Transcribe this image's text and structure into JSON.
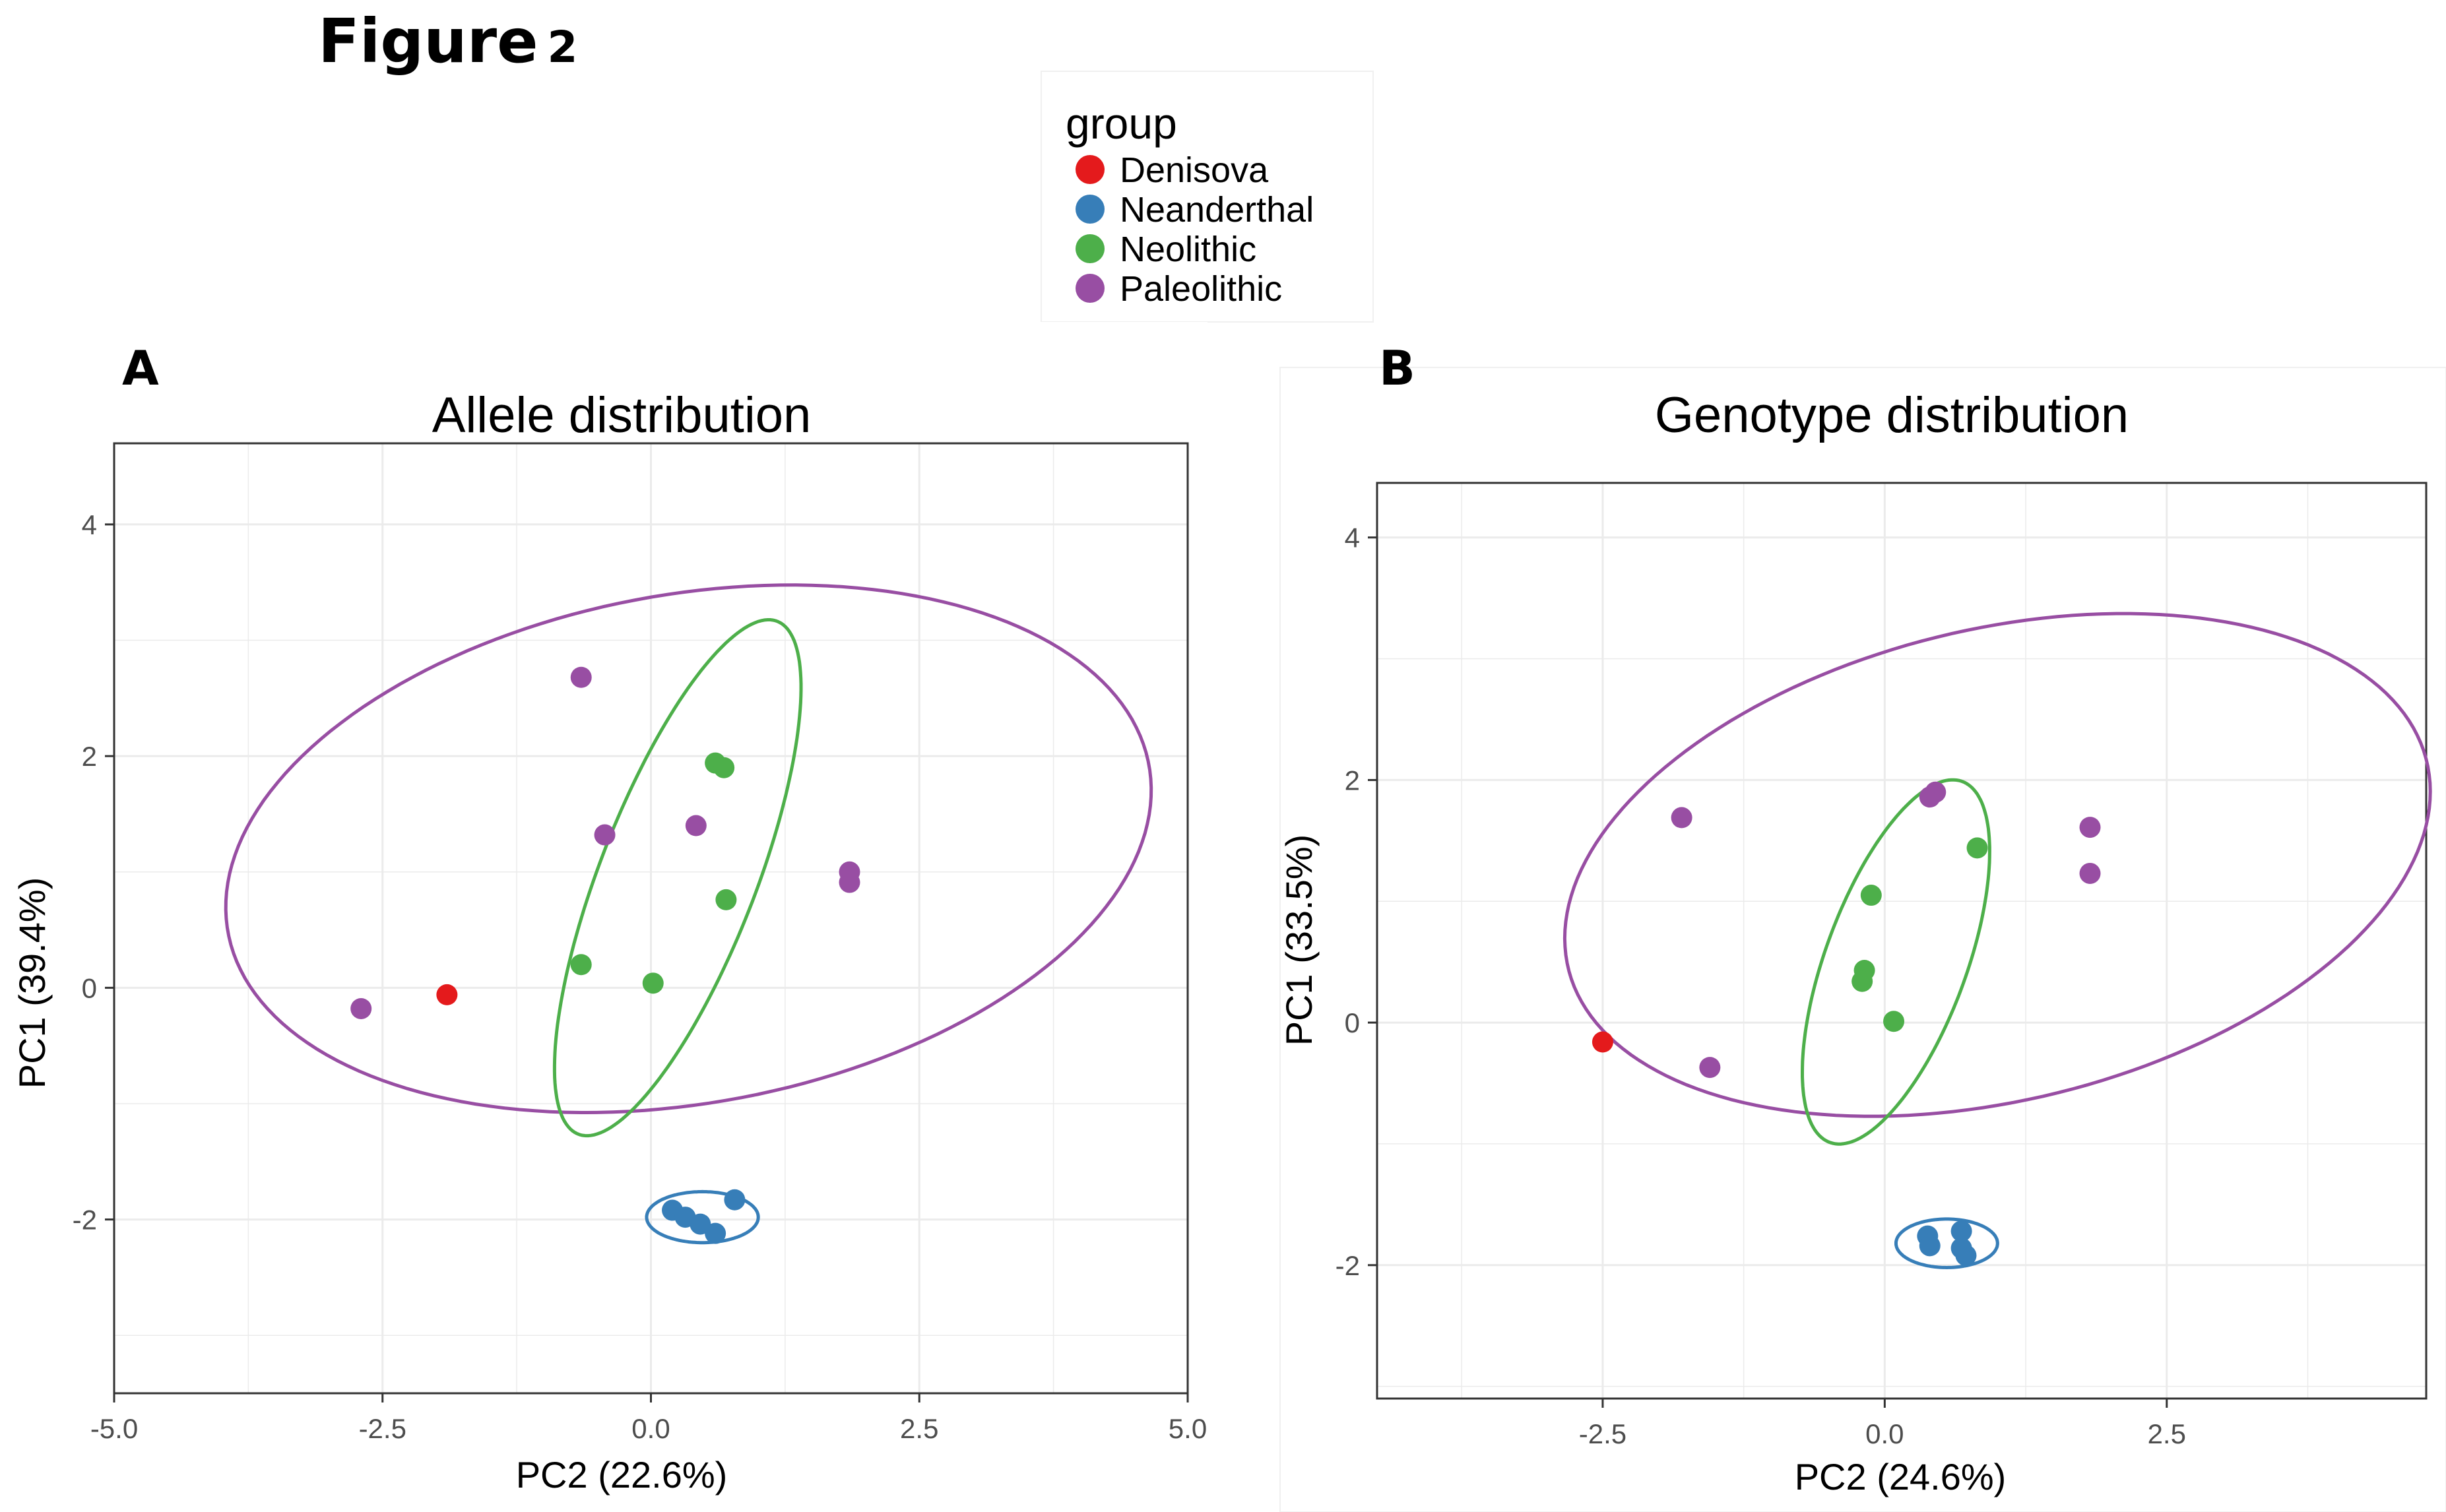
{
  "figure": {
    "title_word": "Figure",
    "title_number": "2"
  },
  "legend": {
    "title": "group",
    "entries": [
      {
        "label": "Denisova",
        "color": "#e41a1c"
      },
      {
        "label": "Neanderthal",
        "color": "#377eb8"
      },
      {
        "label": "Neolithic",
        "color": "#4daf4a"
      },
      {
        "label": "Paleolithic",
        "color": "#984ea3"
      }
    ]
  },
  "chart_data": [
    {
      "type": "scatter",
      "panel_label": "A",
      "title": "Allele distribution",
      "xlabel": "PC2 (22.6%)",
      "ylabel": "PC1 (39.4%)",
      "xlim": [
        -5.0,
        5.0
      ],
      "ylim": [
        -3.5,
        4.7
      ],
      "xticks": [
        -5.0,
        -2.5,
        0.0,
        2.5,
        5.0
      ],
      "xtick_labels": [
        "-5.0",
        "-2.5",
        "0.0",
        "2.5",
        "5.0"
      ],
      "yticks": [
        -2,
        0,
        2,
        4
      ],
      "ytick_labels": [
        "-2",
        "0",
        "2",
        "4"
      ],
      "grid": true,
      "series": [
        {
          "name": "Denisova",
          "color": "#e41a1c",
          "points": [
            [
              -1.9,
              -0.06
            ]
          ]
        },
        {
          "name": "Neanderthal",
          "color": "#377eb8",
          "points": [
            [
              0.2,
              -1.92
            ],
            [
              0.32,
              -1.98
            ],
            [
              0.46,
              -2.04
            ],
            [
              0.6,
              -2.12
            ],
            [
              0.78,
              -1.83
            ]
          ]
        },
        {
          "name": "Neolithic",
          "color": "#4daf4a",
          "points": [
            [
              0.6,
              1.94
            ],
            [
              0.68,
              1.9
            ],
            [
              0.7,
              0.76
            ],
            [
              -0.65,
              0.2
            ],
            [
              0.02,
              0.04
            ]
          ]
        },
        {
          "name": "Paleolithic",
          "color": "#984ea3",
          "points": [
            [
              -0.65,
              2.68
            ],
            [
              -0.43,
              1.32
            ],
            [
              0.42,
              1.4
            ],
            [
              1.85,
              1.0
            ],
            [
              1.85,
              0.91
            ],
            [
              -2.7,
              -0.18
            ]
          ]
        }
      ],
      "ellipses": [
        {
          "group": "Paleolithic",
          "color": "#984ea3",
          "center": [
            0.35,
            1.2
          ],
          "semi_axes": [
            4.35,
            2.2
          ],
          "rotation_deg": 9
        },
        {
          "group": "Neolithic",
          "color": "#4daf4a",
          "center": [
            0.25,
            0.95
          ],
          "semi_axes": [
            2.4,
            0.72
          ],
          "rotation_deg": 67
        },
        {
          "group": "Neanderthal",
          "color": "#377eb8",
          "center": [
            0.48,
            -1.98
          ],
          "semi_axes": [
            0.52,
            0.22
          ],
          "rotation_deg": 0
        }
      ]
    },
    {
      "type": "scatter",
      "panel_label": "B",
      "title": "Genotype distribution",
      "xlabel": "PC2 (24.6%)",
      "ylabel": "PC1 (33.5%)",
      "xlim": [
        -4.5,
        4.8
      ],
      "ylim": [
        -3.1,
        4.45
      ],
      "xticks": [
        -2.5,
        0.0,
        2.5
      ],
      "xtick_labels": [
        "-2.5",
        "0.0",
        "2.5"
      ],
      "yticks": [
        -2,
        0,
        2,
        4
      ],
      "ytick_labels": [
        "-2",
        "0",
        "2",
        "4"
      ],
      "grid": true,
      "series": [
        {
          "name": "Denisova",
          "color": "#e41a1c",
          "points": [
            [
              -2.5,
              -0.16
            ]
          ]
        },
        {
          "name": "Neanderthal",
          "color": "#377eb8",
          "points": [
            [
              0.38,
              -1.76
            ],
            [
              0.4,
              -1.84
            ],
            [
              0.68,
              -1.72
            ],
            [
              0.68,
              -1.86
            ],
            [
              0.72,
              -1.92
            ]
          ]
        },
        {
          "name": "Neolithic",
          "color": "#4daf4a",
          "points": [
            [
              0.82,
              1.44
            ],
            [
              -0.12,
              1.05
            ],
            [
              -0.18,
              0.43
            ],
            [
              -0.2,
              0.34
            ],
            [
              0.08,
              0.01
            ]
          ]
        },
        {
          "name": "Paleolithic",
          "color": "#984ea3",
          "points": [
            [
              0.4,
              1.86
            ],
            [
              0.45,
              1.9
            ],
            [
              -1.8,
              1.69
            ],
            [
              1.82,
              1.61
            ],
            [
              1.82,
              1.23
            ],
            [
              -1.55,
              -0.37
            ]
          ]
        }
      ],
      "ellipses": [
        {
          "group": "Paleolithic",
          "color": "#984ea3",
          "center": [
            1.0,
            1.3
          ],
          "semi_axes": [
            3.9,
            1.95
          ],
          "rotation_deg": 12
        },
        {
          "group": "Neolithic",
          "color": "#4daf4a",
          "center": [
            0.1,
            0.5
          ],
          "semi_axes": [
            1.6,
            0.62
          ],
          "rotation_deg": 68
        },
        {
          "group": "Neanderthal",
          "color": "#377eb8",
          "center": [
            0.55,
            -1.82
          ],
          "semi_axes": [
            0.45,
            0.2
          ],
          "rotation_deg": 0
        }
      ]
    }
  ]
}
